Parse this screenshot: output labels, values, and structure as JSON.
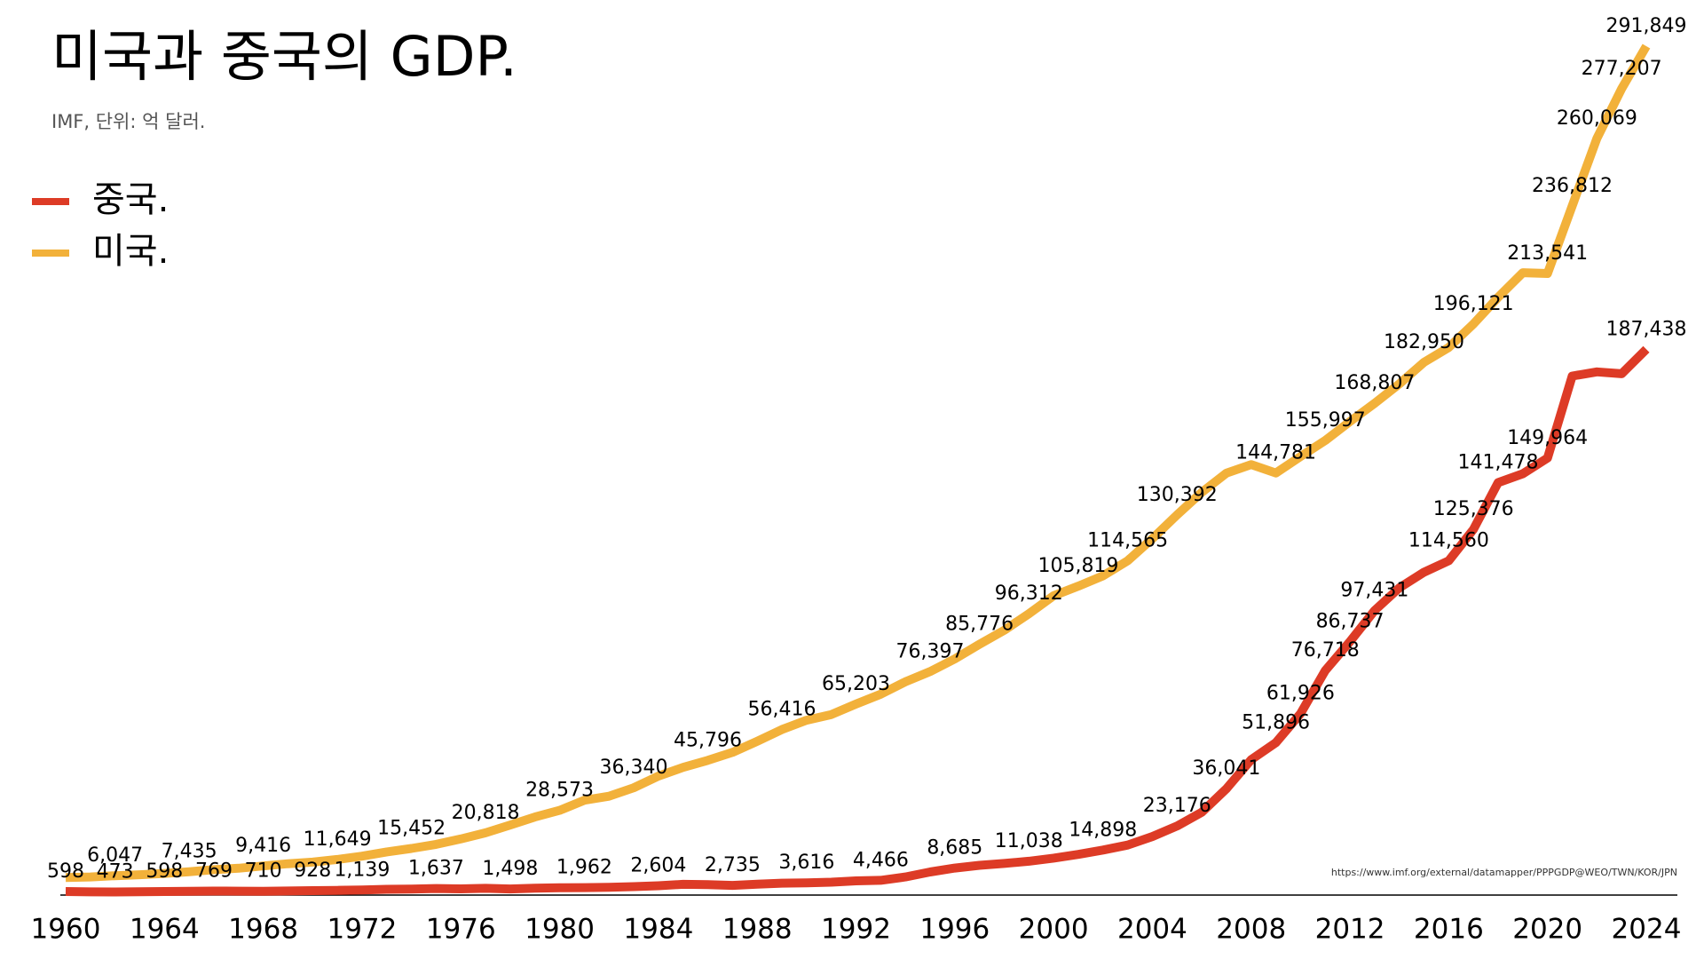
{
  "chart_data": {
    "type": "line",
    "title": "미국과 중국의 GDP.",
    "subtitle": "IMF, 단위: 억 달러.",
    "source": "https://www.imf.org/external/datamapper/PPPGDP@WEO/TWN/KOR/JPN",
    "x": [
      1960,
      1961,
      1962,
      1963,
      1964,
      1965,
      1966,
      1967,
      1968,
      1969,
      1970,
      1971,
      1972,
      1973,
      1974,
      1975,
      1976,
      1977,
      1978,
      1979,
      1980,
      1981,
      1982,
      1983,
      1984,
      1985,
      1986,
      1987,
      1988,
      1989,
      1990,
      1991,
      1992,
      1993,
      1994,
      1995,
      1996,
      1997,
      1998,
      1999,
      2000,
      2001,
      2002,
      2003,
      2004,
      2005,
      2006,
      2007,
      2008,
      2009,
      2010,
      2011,
      2012,
      2013,
      2014,
      2015,
      2016,
      2017,
      2018,
      2019,
      2020,
      2021,
      2022,
      2023,
      2024
    ],
    "xlim": [
      1960,
      2024
    ],
    "xticks": [
      1960,
      1964,
      1968,
      1972,
      1976,
      1980,
      1984,
      1988,
      1992,
      1996,
      2000,
      2004,
      2008,
      2012,
      2016,
      2020,
      2024
    ],
    "legend": "top-left",
    "series": [
      {
        "name": "중국.",
        "color": "#dd3b26",
        "values": [
          598,
          500,
          473,
          507,
          598,
          704,
          769,
          727,
          710,
          797,
          928,
          999,
          1139,
          1385,
          1442,
          1637,
          1529,
          1723,
          1498,
          1783,
          1911,
          1962,
          2051,
          2303,
          2604,
          3098,
          3008,
          2735,
          3123,
          3477,
          3616,
          3833,
          4269,
          4466,
          5644,
          7340,
          8685,
          9623,
          10292,
          11038,
          12113,
          13394,
          14898,
          16603,
          19553,
          23176,
          27929,
          36041,
          46040,
          51896,
          61926,
          76718,
          86737,
          97431,
          105243,
          110615,
          114560,
          125376,
          141478,
          144540,
          149964,
          178200,
          179630,
          179000,
          187438
        ],
        "value_labels": [
          "598",
          null,
          "473",
          null,
          "598",
          null,
          "769",
          null,
          "710",
          null,
          "928",
          null,
          "1,139",
          null,
          null,
          "1,637",
          null,
          null,
          "1,498",
          null,
          null,
          "1,962",
          null,
          null,
          "2,604",
          null,
          null,
          "2,735",
          null,
          null,
          "3,616",
          null,
          null,
          "4,466",
          null,
          null,
          "8,685",
          null,
          null,
          "11,038",
          null,
          null,
          "14,898",
          null,
          null,
          "23,176",
          null,
          "36,041",
          null,
          "51,896",
          "61,926",
          "76,718",
          "86,737",
          "97,431",
          null,
          null,
          "114,560",
          "125,376",
          "141,478",
          null,
          "149,964",
          null,
          null,
          null,
          "187,438"
        ]
      },
      {
        "name": "미국.",
        "color": "#f2b13a",
        "values": [
          5433,
          5633,
          6047,
          6380,
          6859,
          7435,
          8150,
          8617,
          9416,
          10197,
          10734,
          11649,
          12799,
          14254,
          15452,
          16848,
          18731,
          20818,
          23516,
          26275,
          28573,
          32073,
          33452,
          36340,
          40376,
          43389,
          45796,
          48550,
          52364,
          56416,
          59631,
          61579,
          65203,
          68587,
          72872,
          76397,
          80732,
          85776,
          90629,
          96312,
          102510,
          105819,
          109360,
          114565,
          122170,
          130392,
          138150,
          144750,
          147690,
          144781,
          150490,
          155997,
          162540,
          168807,
          175510,
          182950,
          188040,
          196121,
          205330,
          213810,
          213541,
          236812,
          260069,
          277207,
          291849
        ],
        "value_labels": [
          null,
          null,
          "6,047",
          null,
          null,
          "7,435",
          null,
          null,
          "9,416",
          null,
          null,
          "11,649",
          null,
          null,
          "15,452",
          null,
          null,
          "20,818",
          null,
          null,
          "28,573",
          null,
          null,
          "36,340",
          null,
          null,
          "45,796",
          null,
          null,
          "56,416",
          null,
          null,
          "65,203",
          null,
          null,
          "76,397",
          null,
          "85,776",
          null,
          "96,312",
          null,
          "105,819",
          null,
          "114,565",
          null,
          "130,392",
          null,
          null,
          null,
          "144,781",
          null,
          "155,997",
          null,
          "168,807",
          null,
          "182,950",
          null,
          "196,121",
          null,
          null,
          "213,541",
          "236,812",
          "260,069",
          "277,207",
          "291,849"
        ]
      }
    ]
  }
}
